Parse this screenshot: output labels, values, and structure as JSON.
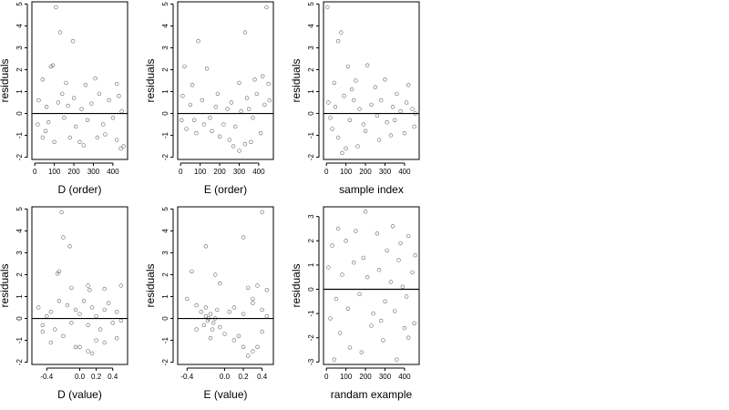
{
  "chart_data": [
    {
      "type": "scatter",
      "xlabel": "D (order)",
      "ylabel": "residuals",
      "xlim": [
        -15,
        475
      ],
      "ylim": [
        -2.1,
        5.1
      ],
      "xticks": [
        0,
        100,
        200,
        300,
        400
      ],
      "xticklabels": [
        "0",
        "100",
        "200",
        "300",
        "400"
      ],
      "yticks": [
        -2,
        -1,
        0,
        1,
        2,
        3,
        4,
        5
      ],
      "yticklabels": [
        "-2",
        "-1",
        "0",
        "1",
        "2",
        "3",
        "4",
        "5"
      ],
      "hline": 0,
      "points": [
        [
          108,
          4.85
        ],
        [
          130,
          3.7
        ],
        [
          195,
          3.3
        ],
        [
          82,
          2.15
        ],
        [
          93,
          2.2
        ],
        [
          310,
          1.6
        ],
        [
          40,
          1.55
        ],
        [
          260,
          1.3
        ],
        [
          420,
          1.35
        ],
        [
          160,
          1.4
        ],
        [
          455,
          -1.5
        ],
        [
          440,
          -1.6
        ],
        [
          420,
          -1.2
        ],
        [
          230,
          -1.3
        ],
        [
          250,
          -1.45
        ],
        [
          40,
          -1.1
        ],
        [
          100,
          -1.3
        ],
        [
          320,
          -1.1
        ],
        [
          180,
          -1.1
        ],
        [
          360,
          -0.95
        ],
        [
          20,
          0.6
        ],
        [
          60,
          0.3
        ],
        [
          70,
          -0.4
        ],
        [
          120,
          0.5
        ],
        [
          150,
          -0.2
        ],
        [
          170,
          0.35
        ],
        [
          210,
          -0.6
        ],
        [
          240,
          0.2
        ],
        [
          270,
          -0.3
        ],
        [
          290,
          0.45
        ],
        [
          330,
          0.9
        ],
        [
          350,
          -0.5
        ],
        [
          380,
          0.6
        ],
        [
          400,
          -0.2
        ],
        [
          430,
          0.8
        ],
        [
          445,
          0.1
        ],
        [
          15,
          -0.5
        ],
        [
          55,
          -0.8
        ],
        [
          140,
          0.9
        ],
        [
          200,
          0.7
        ]
      ]
    },
    {
      "type": "scatter",
      "xlabel": "E (order)",
      "ylabel": "residuals",
      "xlim": [
        -15,
        475
      ],
      "ylim": [
        -2.1,
        5.1
      ],
      "xticks": [
        0,
        100,
        200,
        300,
        400
      ],
      "xticklabels": [
        "0",
        "100",
        "200",
        "300",
        "400"
      ],
      "yticks": [
        -2,
        -1,
        0,
        1,
        2,
        3,
        4,
        5
      ],
      "yticklabels": [
        "-2",
        "-1",
        "0",
        "1",
        "2",
        "3",
        "4",
        "5"
      ],
      "hline": 0,
      "points": [
        [
          440,
          4.85
        ],
        [
          330,
          3.7
        ],
        [
          90,
          3.3
        ],
        [
          20,
          2.15
        ],
        [
          135,
          2.05
        ],
        [
          420,
          1.7
        ],
        [
          380,
          1.55
        ],
        [
          300,
          1.4
        ],
        [
          60,
          1.3
        ],
        [
          450,
          1.35
        ],
        [
          300,
          -1.7
        ],
        [
          270,
          -1.5
        ],
        [
          330,
          -1.4
        ],
        [
          250,
          -1.2
        ],
        [
          200,
          -1.05
        ],
        [
          360,
          -1.3
        ],
        [
          410,
          -0.9
        ],
        [
          160,
          -0.8
        ],
        [
          80,
          -0.9
        ],
        [
          30,
          -0.7
        ],
        [
          10,
          0.8
        ],
        [
          50,
          0.4
        ],
        [
          70,
          -0.3
        ],
        [
          110,
          0.6
        ],
        [
          150,
          -0.2
        ],
        [
          180,
          0.3
        ],
        [
          220,
          -0.5
        ],
        [
          240,
          0.2
        ],
        [
          280,
          -0.6
        ],
        [
          310,
          0.1
        ],
        [
          340,
          0.7
        ],
        [
          370,
          -0.2
        ],
        [
          390,
          0.9
        ],
        [
          430,
          0.4
        ],
        [
          455,
          0.6
        ],
        [
          120,
          -0.5
        ],
        [
          190,
          0.9
        ],
        [
          260,
          0.5
        ],
        [
          350,
          0.2
        ],
        [
          5,
          -0.3
        ]
      ]
    },
    {
      "type": "scatter",
      "xlabel": "sample index",
      "ylabel": "residuals",
      "xlim": [
        -15,
        475
      ],
      "ylim": [
        -2.1,
        5.1
      ],
      "xticks": [
        0,
        100,
        200,
        300,
        400
      ],
      "xticklabels": [
        "0",
        "100",
        "200",
        "300",
        "400"
      ],
      "yticks": [
        -2,
        -1,
        0,
        1,
        2,
        3,
        4,
        5
      ],
      "yticklabels": [
        "-2",
        "-1",
        "0",
        "1",
        "2",
        "3",
        "4",
        "5"
      ],
      "hline": 0,
      "points": [
        [
          5,
          4.85
        ],
        [
          75,
          3.7
        ],
        [
          60,
          3.3
        ],
        [
          110,
          2.15
        ],
        [
          210,
          2.2
        ],
        [
          40,
          1.4
        ],
        [
          150,
          1.5
        ],
        [
          300,
          1.55
        ],
        [
          420,
          1.3
        ],
        [
          250,
          1.2
        ],
        [
          80,
          -1.8
        ],
        [
          100,
          -1.6
        ],
        [
          160,
          -1.5
        ],
        [
          60,
          -1.1
        ],
        [
          270,
          -1.2
        ],
        [
          330,
          -1.0
        ],
        [
          400,
          -0.9
        ],
        [
          450,
          -0.6
        ],
        [
          200,
          -0.8
        ],
        [
          30,
          -0.7
        ],
        [
          10,
          0.5
        ],
        [
          20,
          -0.2
        ],
        [
          45,
          0.3
        ],
        [
          90,
          0.8
        ],
        [
          120,
          -0.3
        ],
        [
          140,
          0.6
        ],
        [
          170,
          0.2
        ],
        [
          190,
          -0.5
        ],
        [
          230,
          0.4
        ],
        [
          260,
          -0.1
        ],
        [
          280,
          0.6
        ],
        [
          310,
          -0.4
        ],
        [
          340,
          0.3
        ],
        [
          360,
          0.9
        ],
        [
          380,
          0.1
        ],
        [
          410,
          0.5
        ],
        [
          440,
          0.2
        ],
        [
          455,
          0.0
        ],
        [
          350,
          -0.3
        ],
        [
          130,
          1.1
        ]
      ]
    },
    {
      "type": "scatter",
      "xlabel": "D (value)",
      "ylabel": "residuals",
      "xlim": [
        -0.58,
        0.58
      ],
      "ylim": [
        -2.1,
        5.1
      ],
      "xticks": [
        -0.4,
        0.0,
        0.2,
        0.4
      ],
      "xticklabels": [
        "-0.4",
        "0.0",
        "0.2",
        "0.4"
      ],
      "yticks": [
        -2,
        -1,
        0,
        1,
        2,
        3,
        4,
        5
      ],
      "yticklabels": [
        "-2",
        "-1",
        "0",
        "1",
        "2",
        "3",
        "4",
        "5"
      ],
      "hline": 0,
      "points": [
        [
          -0.22,
          4.85
        ],
        [
          -0.2,
          3.7
        ],
        [
          -0.12,
          3.3
        ],
        [
          -0.25,
          2.15
        ],
        [
          -0.27,
          2.05
        ],
        [
          0.1,
          1.5
        ],
        [
          -0.1,
          1.4
        ],
        [
          0.12,
          1.3
        ],
        [
          0.3,
          1.35
        ],
        [
          0.5,
          1.5
        ],
        [
          0.1,
          -1.5
        ],
        [
          0.15,
          -1.6
        ],
        [
          -0.05,
          -1.3
        ],
        [
          0.0,
          -1.3
        ],
        [
          0.3,
          -1.1
        ],
        [
          -0.35,
          -1.1
        ],
        [
          0.45,
          -0.9
        ],
        [
          0.2,
          -1.0
        ],
        [
          -0.2,
          -0.8
        ],
        [
          -0.45,
          -0.6
        ],
        [
          -0.5,
          0.5
        ],
        [
          -0.45,
          -0.3
        ],
        [
          -0.35,
          0.3
        ],
        [
          -0.3,
          -0.5
        ],
        [
          -0.15,
          0.6
        ],
        [
          -0.1,
          -0.2
        ],
        [
          -0.05,
          0.4
        ],
        [
          0.05,
          0.8
        ],
        [
          0.1,
          -0.3
        ],
        [
          0.15,
          0.5
        ],
        [
          0.2,
          0.1
        ],
        [
          0.25,
          -0.5
        ],
        [
          0.35,
          0.7
        ],
        [
          0.4,
          -0.2
        ],
        [
          0.45,
          0.3
        ],
        [
          0.5,
          -0.1
        ],
        [
          -0.25,
          0.8
        ],
        [
          0.0,
          0.2
        ],
        [
          0.3,
          0.4
        ],
        [
          -0.4,
          0.1
        ]
      ]
    },
    {
      "type": "scatter",
      "xlabel": "E (value)",
      "ylabel": "residuals",
      "xlim": [
        -0.5,
        0.52
      ],
      "ylim": [
        -2.1,
        5.1
      ],
      "xticks": [
        -0.4,
        0.0,
        0.2,
        0.4
      ],
      "xticklabels": [
        "-0.4",
        "0.0",
        "0.2",
        "0.4"
      ],
      "yticks": [
        -2,
        -1,
        0,
        1,
        2,
        3,
        4,
        5
      ],
      "yticklabels": [
        "-2",
        "-1",
        "0",
        "1",
        "2",
        "3",
        "4",
        "5"
      ],
      "hline": 0,
      "points": [
        [
          0.4,
          4.85
        ],
        [
          0.2,
          3.7
        ],
        [
          -0.2,
          3.3
        ],
        [
          -0.35,
          2.15
        ],
        [
          -0.1,
          2.0
        ],
        [
          0.35,
          1.5
        ],
        [
          0.45,
          1.3
        ],
        [
          0.25,
          1.4
        ],
        [
          -0.05,
          1.6
        ],
        [
          0.3,
          0.9
        ],
        [
          0.25,
          -1.7
        ],
        [
          0.3,
          -1.5
        ],
        [
          0.2,
          -1.3
        ],
        [
          0.35,
          -1.3
        ],
        [
          0.1,
          -1.0
        ],
        [
          0.15,
          -0.8
        ],
        [
          0.4,
          -0.6
        ],
        [
          -0.15,
          -0.9
        ],
        [
          0.0,
          -0.7
        ],
        [
          -0.3,
          -0.5
        ],
        [
          -0.2,
          0.1
        ],
        [
          -0.18,
          -0.1
        ],
        [
          -0.15,
          0.2
        ],
        [
          -0.12,
          -0.2
        ],
        [
          -0.1,
          0.0
        ],
        [
          -0.22,
          -0.3
        ],
        [
          -0.25,
          0.3
        ],
        [
          -0.08,
          0.4
        ],
        [
          -0.05,
          -0.4
        ],
        [
          -0.2,
          0.5
        ],
        [
          -0.3,
          0.6
        ],
        [
          -0.4,
          0.9
        ],
        [
          0.05,
          0.3
        ],
        [
          0.1,
          0.5
        ],
        [
          0.2,
          0.2
        ],
        [
          0.3,
          0.7
        ],
        [
          0.4,
          0.4
        ],
        [
          0.45,
          0.1
        ],
        [
          -0.13,
          -0.5
        ],
        [
          -0.17,
          0.0
        ]
      ]
    },
    {
      "type": "scatter",
      "xlabel": "randam example",
      "ylabel": "residuals",
      "xlim": [
        -15,
        475
      ],
      "ylim": [
        -3.1,
        3.4
      ],
      "xticks": [
        0,
        100,
        200,
        300,
        400
      ],
      "xticklabels": [
        "0",
        "100",
        "200",
        "300",
        "400"
      ],
      "yticks": [
        -3,
        -2,
        -1,
        0,
        1,
        2,
        3
      ],
      "yticklabels": [
        "-3",
        "-2",
        "-1",
        "0",
        "1",
        "2",
        "3"
      ],
      "hline": 0,
      "points": [
        [
          200,
          3.2
        ],
        [
          340,
          2.6
        ],
        [
          150,
          2.4
        ],
        [
          60,
          2.5
        ],
        [
          420,
          2.2
        ],
        [
          260,
          2.3
        ],
        [
          100,
          2.0
        ],
        [
          30,
          1.8
        ],
        [
          380,
          1.9
        ],
        [
          310,
          1.6
        ],
        [
          40,
          -2.9
        ],
        [
          360,
          -2.9
        ],
        [
          180,
          -2.6
        ],
        [
          120,
          -2.4
        ],
        [
          290,
          -2.1
        ],
        [
          420,
          -2.0
        ],
        [
          70,
          -1.8
        ],
        [
          230,
          -1.5
        ],
        [
          400,
          -1.6
        ],
        [
          450,
          -1.4
        ],
        [
          10,
          0.9
        ],
        [
          50,
          -0.4
        ],
        [
          80,
          0.6
        ],
        [
          110,
          -0.8
        ],
        [
          140,
          1.1
        ],
        [
          170,
          -0.2
        ],
        [
          210,
          0.5
        ],
        [
          240,
          -1.0
        ],
        [
          270,
          0.8
        ],
        [
          300,
          -0.5
        ],
        [
          330,
          0.3
        ],
        [
          350,
          -0.9
        ],
        [
          370,
          1.2
        ],
        [
          390,
          0.1
        ],
        [
          410,
          -0.3
        ],
        [
          440,
          0.7
        ],
        [
          455,
          1.4
        ],
        [
          20,
          -1.2
        ],
        [
          190,
          1.3
        ],
        [
          280,
          -1.3
        ]
      ]
    }
  ]
}
